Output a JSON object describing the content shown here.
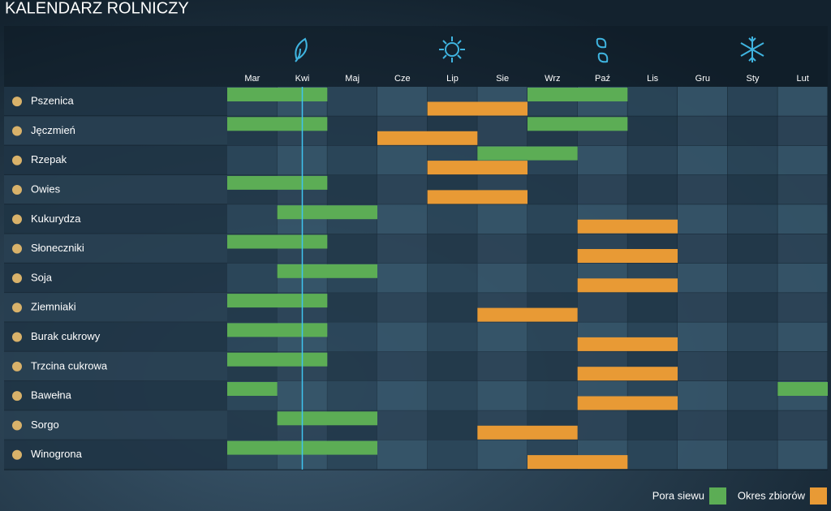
{
  "title": "KALENDARZ ROLNICZY",
  "months": [
    "Mar",
    "Kwi",
    "Maj",
    "Cze",
    "Lip",
    "Sie",
    "Wrz",
    "Paź",
    "Lis",
    "Gru",
    "Sty",
    "Lut"
  ],
  "current_position": 1.5,
  "crops": [
    {
      "name": "Pszenica",
      "sowing": [
        [
          0,
          1
        ],
        [
          6,
          7
        ]
      ],
      "harvest": [
        [
          4,
          5
        ]
      ]
    },
    {
      "name": "Jęczmień",
      "sowing": [
        [
          0,
          1
        ],
        [
          6,
          7
        ]
      ],
      "harvest": [
        [
          3,
          4
        ]
      ]
    },
    {
      "name": "Rzepak",
      "sowing": [
        [
          5,
          6
        ]
      ],
      "harvest": [
        [
          4,
          5
        ]
      ]
    },
    {
      "name": "Owies",
      "sowing": [
        [
          0,
          1
        ]
      ],
      "harvest": [
        [
          4,
          5
        ]
      ]
    },
    {
      "name": "Kukurydza",
      "sowing": [
        [
          1,
          2
        ]
      ],
      "harvest": [
        [
          7,
          8
        ]
      ]
    },
    {
      "name": "Słoneczniki",
      "sowing": [
        [
          0,
          1
        ]
      ],
      "harvest": [
        [
          7,
          8
        ]
      ]
    },
    {
      "name": "Soja",
      "sowing": [
        [
          1,
          2
        ]
      ],
      "harvest": [
        [
          7,
          8
        ]
      ]
    },
    {
      "name": "Ziemniaki",
      "sowing": [
        [
          0,
          1
        ]
      ],
      "harvest": [
        [
          5,
          6
        ]
      ]
    },
    {
      "name": "Burak cukrowy",
      "sowing": [
        [
          0,
          1
        ]
      ],
      "harvest": [
        [
          7,
          8
        ]
      ]
    },
    {
      "name": "Trzcina cukrowa",
      "sowing": [
        [
          0,
          1
        ]
      ],
      "harvest": [
        [
          7,
          8
        ]
      ]
    },
    {
      "name": "Bawełna",
      "sowing": [
        [
          0,
          0
        ],
        [
          11,
          11
        ]
      ],
      "harvest": [
        [
          7,
          8
        ]
      ]
    },
    {
      "name": "Sorgo",
      "sowing": [
        [
          1,
          2
        ]
      ],
      "harvest": [
        [
          5,
          6
        ]
      ]
    },
    {
      "name": "Winogrona",
      "sowing": [
        [
          0,
          2
        ]
      ],
      "harvest": [
        [
          6,
          7
        ]
      ]
    }
  ],
  "legend": {
    "sowing": "Pora siewu",
    "harvest": "Okres zbiorów"
  },
  "colors": {
    "sowing": "#5cad55",
    "harvest": "#e89a35"
  }
}
